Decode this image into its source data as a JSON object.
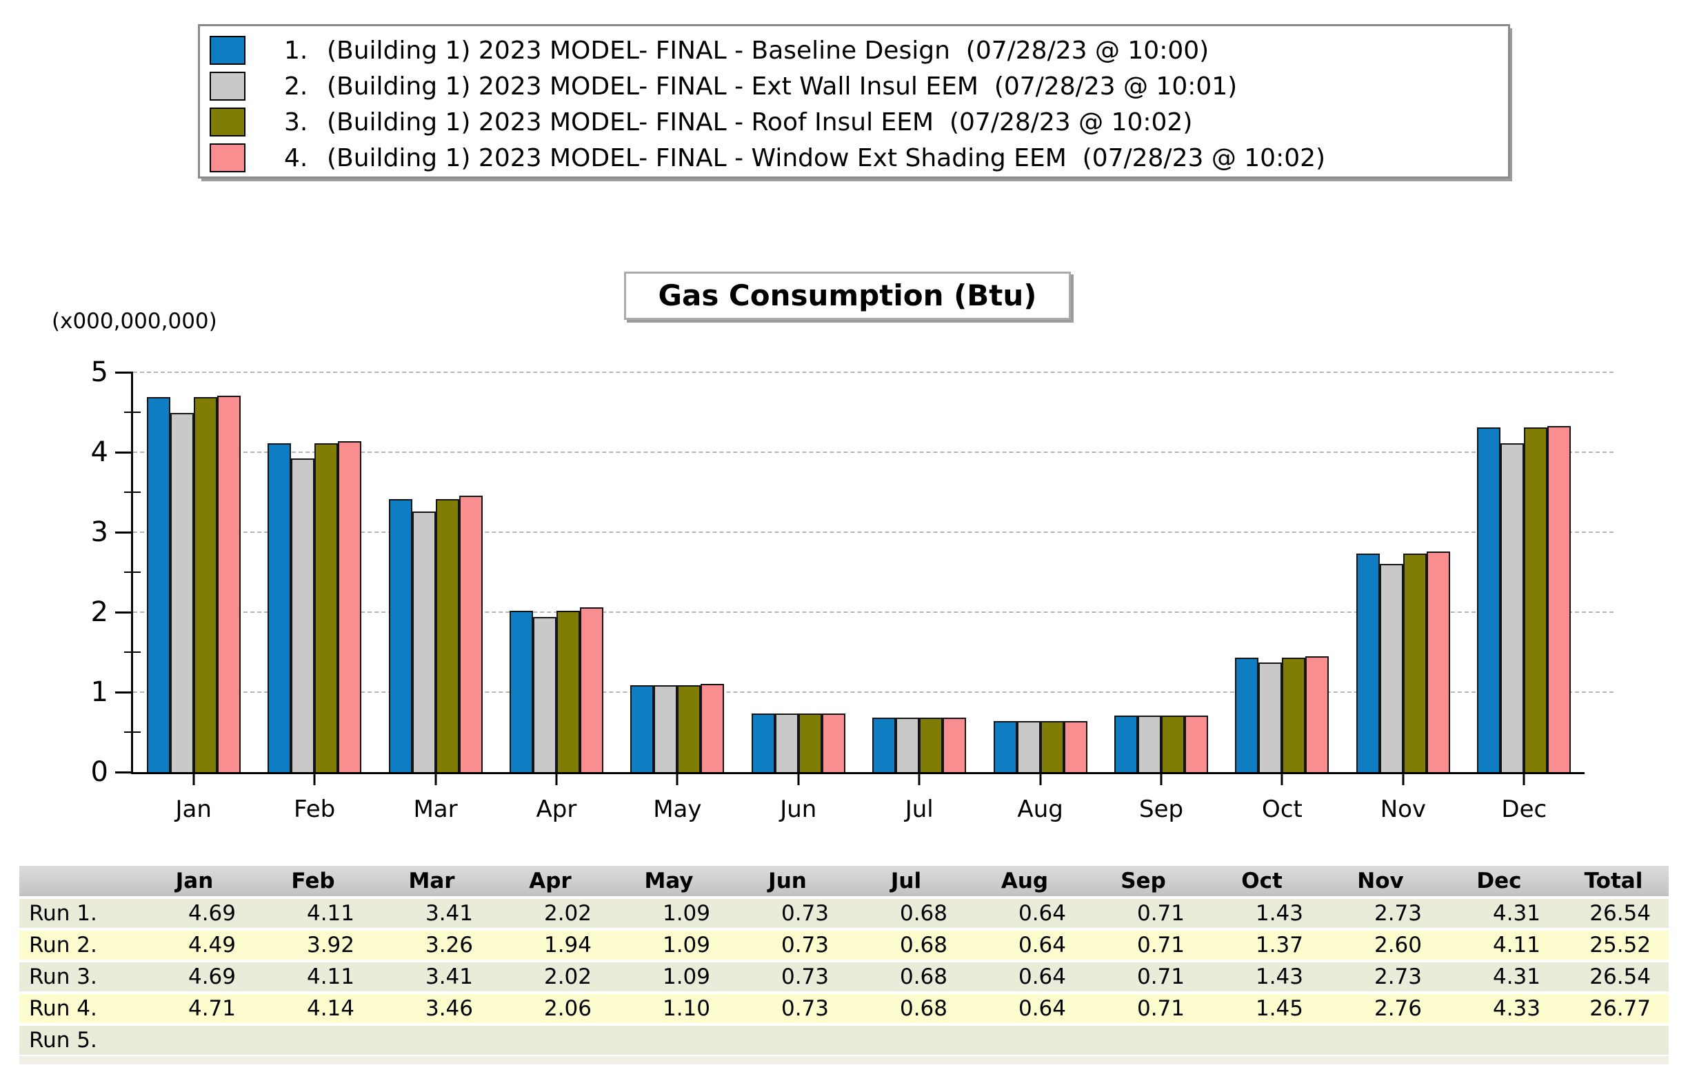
{
  "legend": {
    "items": [
      {
        "num": "1.",
        "label": "(Building 1) 2023 MODEL- FINAL - Baseline Design  (07/28/23 @ 10:00)",
        "color": "#0E7DC2"
      },
      {
        "num": "2.",
        "label": "(Building 1) 2023 MODEL- FINAL - Ext Wall Insul EEM  (07/28/23 @ 10:01)",
        "color": "#C9C9C9"
      },
      {
        "num": "3.",
        "label": "(Building 1) 2023 MODEL- FINAL - Roof Insul EEM  (07/28/23 @ 10:02)",
        "color": "#7F7D05"
      },
      {
        "num": "4.",
        "label": "(Building 1) 2023 MODEL- FINAL - Window Ext Shading EEM  (07/28/23 @ 10:02)",
        "color": "#F88E90"
      }
    ]
  },
  "chart": {
    "title": "Gas Consumption (Btu)",
    "unit_label": "(x000,000,000)",
    "y_ticks": [
      0,
      1,
      2,
      3,
      4,
      5
    ],
    "months": [
      "Jan",
      "Feb",
      "Mar",
      "Apr",
      "May",
      "Jun",
      "Jul",
      "Aug",
      "Sep",
      "Oct",
      "Nov",
      "Dec"
    ]
  },
  "chart_data": {
    "type": "bar",
    "title": "Gas Consumption (Btu)",
    "ylabel": "(x000,000,000)",
    "ylim": [
      0,
      5
    ],
    "grid": true,
    "legend_position": "top-left-box",
    "categories": [
      "Jan",
      "Feb",
      "Mar",
      "Apr",
      "May",
      "Jun",
      "Jul",
      "Aug",
      "Sep",
      "Oct",
      "Nov",
      "Dec"
    ],
    "series": [
      {
        "name": "Run 1. Baseline Design",
        "color": "#0E7DC2",
        "values": [
          4.69,
          4.11,
          3.41,
          2.02,
          1.09,
          0.73,
          0.68,
          0.64,
          0.71,
          1.43,
          2.73,
          4.31
        ],
        "total": 26.54
      },
      {
        "name": "Run 2. Ext Wall Insul EEM",
        "color": "#C9C9C9",
        "values": [
          4.49,
          3.92,
          3.26,
          1.94,
          1.09,
          0.73,
          0.68,
          0.64,
          0.71,
          1.37,
          2.6,
          4.11
        ],
        "total": 25.52
      },
      {
        "name": "Run 3. Roof Insul EEM",
        "color": "#7F7D05",
        "values": [
          4.69,
          4.11,
          3.41,
          2.02,
          1.09,
          0.73,
          0.68,
          0.64,
          0.71,
          1.43,
          2.73,
          4.31
        ],
        "total": 26.54
      },
      {
        "name": "Run 4. Window Ext Shading EEM",
        "color": "#F88E90",
        "values": [
          4.71,
          4.14,
          3.46,
          2.06,
          1.1,
          0.73,
          0.68,
          0.64,
          0.71,
          1.45,
          2.76,
          4.33
        ],
        "total": 26.77
      }
    ]
  },
  "table": {
    "headers": [
      "",
      "Jan",
      "Feb",
      "Mar",
      "Apr",
      "May",
      "Jun",
      "Jul",
      "Aug",
      "Sep",
      "Oct",
      "Nov",
      "Dec",
      "Total"
    ],
    "rows": [
      {
        "label": "Run 1.",
        "cells": [
          "4.69",
          "4.11",
          "3.41",
          "2.02",
          "1.09",
          "0.73",
          "0.68",
          "0.64",
          "0.71",
          "1.43",
          "2.73",
          "4.31",
          "26.54"
        ]
      },
      {
        "label": "Run 2.",
        "cells": [
          "4.49",
          "3.92",
          "3.26",
          "1.94",
          "1.09",
          "0.73",
          "0.68",
          "0.64",
          "0.71",
          "1.37",
          "2.60",
          "4.11",
          "25.52"
        ]
      },
      {
        "label": "Run 3.",
        "cells": [
          "4.69",
          "4.11",
          "3.41",
          "2.02",
          "1.09",
          "0.73",
          "0.68",
          "0.64",
          "0.71",
          "1.43",
          "2.73",
          "4.31",
          "26.54"
        ]
      },
      {
        "label": "Run 4.",
        "cells": [
          "4.71",
          "4.14",
          "3.46",
          "2.06",
          "1.10",
          "0.73",
          "0.68",
          "0.64",
          "0.71",
          "1.45",
          "2.76",
          "4.33",
          "26.77"
        ]
      },
      {
        "label": "Run 5.",
        "cells": [
          "",
          "",
          "",
          "",
          "",
          "",
          "",
          "",
          "",
          "",
          "",
          "",
          ""
        ]
      }
    ],
    "colors": {
      "header_bg": "#C9C9C9",
      "row_odd_bg": "#EBEBDA",
      "row_even_bg": "#FCFCCE"
    }
  }
}
